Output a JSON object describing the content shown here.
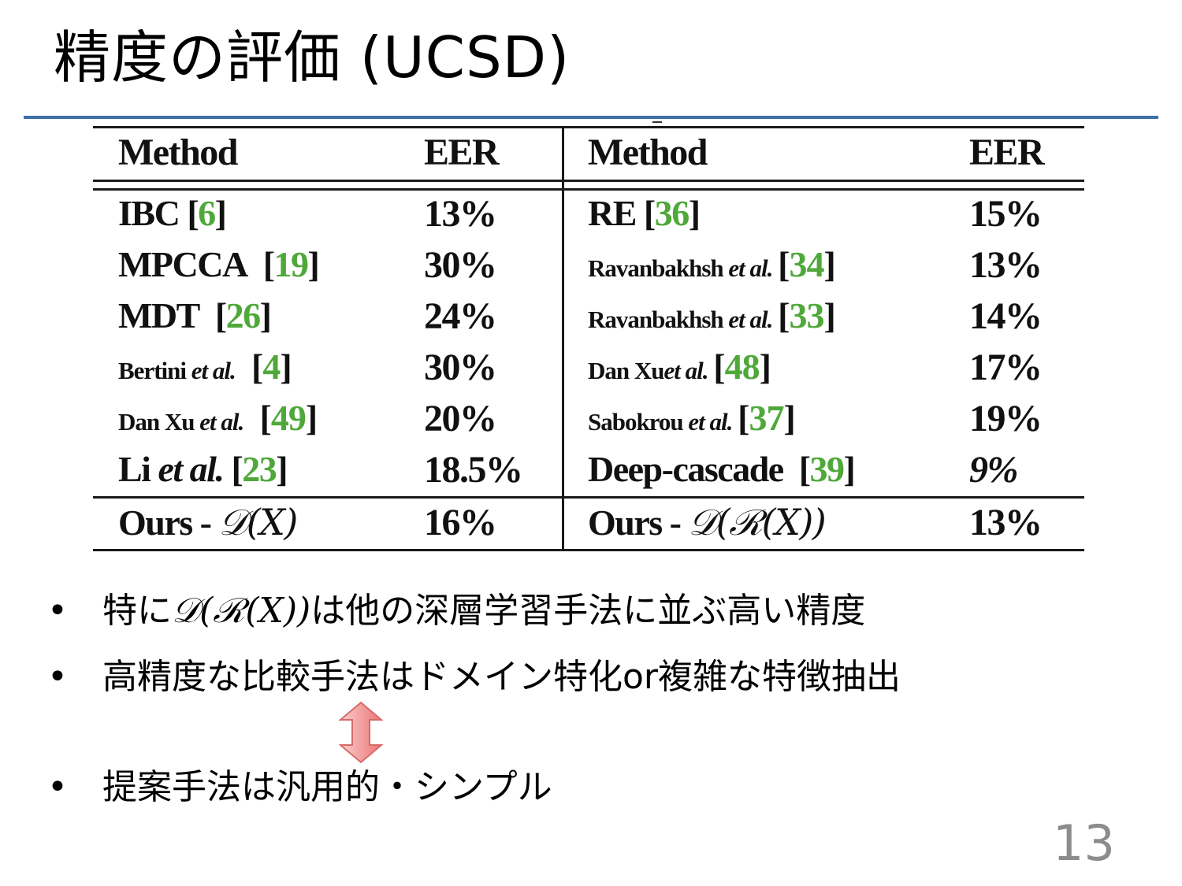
{
  "slide": {
    "title": "精度の評価 (UCSD)",
    "page_number": "13"
  },
  "table": {
    "headers": {
      "left_method": "Method",
      "left_eer": "EER",
      "right_method": "Method",
      "right_eer": "EER"
    },
    "left_rows": [
      {
        "name": "IBC",
        "em": "",
        "cite": "6",
        "eer": "13%"
      },
      {
        "name": "MPCCA",
        "em": "",
        "cite": "19",
        "eer": "30%"
      },
      {
        "name": "MDT",
        "em": "",
        "cite": "26",
        "eer": "24%"
      },
      {
        "name": "Bertini",
        "em": "et al.",
        "cite": "4",
        "eer": "30%"
      },
      {
        "name": "Dan Xu",
        "em": "et al.",
        "cite": "49",
        "eer": "20%"
      },
      {
        "name": "Li",
        "em": "et al.",
        "cite": "23",
        "eer": "18.5%"
      }
    ],
    "right_rows": [
      {
        "name": "RE",
        "em": "",
        "cite": "36",
        "eer": "15%"
      },
      {
        "name": "Ravanbakhsh",
        "em": "et al.",
        "cite": "34",
        "eer": "13%"
      },
      {
        "name": "Ravanbakhsh",
        "em": "et al.",
        "cite": "33",
        "eer": "14%"
      },
      {
        "name": "Dan Xu",
        "em": "et al.",
        "cite": "48",
        "eer": "17%"
      },
      {
        "name": "Sabokrou",
        "em": "et al.",
        "cite": "37",
        "eer": "19%"
      },
      {
        "name": "Deep-cascade",
        "em": "",
        "cite": "39",
        "eer": "9%"
      }
    ],
    "ours_left": {
      "name": "Ours - ",
      "math": "𝒟(X)",
      "eer": "16%"
    },
    "ours_right": {
      "name": "Ours - ",
      "math": "𝒟(ℛ(X))",
      "eer": "13%"
    }
  },
  "bullets": {
    "b1_before": "特に",
    "b1_math": "𝒟(ℛ(X))",
    "b1_after": "は他の深層学習手法に並ぶ高い精度",
    "b2": "高精度な比較手法はドメイン特化or複雑な特徴抽出",
    "b3": "提案手法は汎用的・シンプル",
    "bullet_char": "•"
  },
  "colors": {
    "title_rule": "#3f6ea8",
    "citation": "#4fa83a",
    "arrow_fill": "#f08a8a",
    "page_number": "#8c8c8c"
  },
  "icons": {
    "arrow": "up-down-arrow"
  }
}
